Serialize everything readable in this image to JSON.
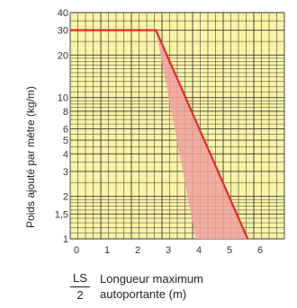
{
  "chart_data": {
    "type": "line",
    "ylabel": "Poids ajouté par mètre (kg/m)",
    "xlabel_fraction": {
      "numerator": "LS",
      "denominator": "2"
    },
    "xlabel_lines": [
      "Longueur maximum",
      "autoportante (m)"
    ],
    "xlim": [
      0,
      7
    ],
    "ylim": [
      1,
      40
    ],
    "yscale": "log",
    "x_ticks": [
      {
        "value": 0,
        "label": "0"
      },
      {
        "value": 1,
        "label": "1"
      },
      {
        "value": 2,
        "label": "2"
      },
      {
        "value": 3,
        "label": "3"
      },
      {
        "value": 4,
        "label": "4"
      },
      {
        "value": 5,
        "label": "5"
      },
      {
        "value": 6,
        "label": "6"
      }
    ],
    "y_ticks": [
      {
        "value": 1,
        "label": "1"
      },
      {
        "value": 1.5,
        "label": "1,5"
      },
      {
        "value": 2,
        "label": "2"
      },
      {
        "value": 3,
        "label": "3"
      },
      {
        "value": 4,
        "label": "4"
      },
      {
        "value": 5,
        "label": "5"
      },
      {
        "value": 6,
        "label": "6"
      },
      {
        "value": 8,
        "label": "8"
      },
      {
        "value": 10,
        "label": "10"
      },
      {
        "value": 20,
        "label": "20"
      },
      {
        "value": 30,
        "label": "30"
      },
      {
        "value": 40,
        "label": "40"
      }
    ],
    "grid": true,
    "series": [
      {
        "kind": "line",
        "points": [
          [
            0,
            30
          ],
          [
            2.8,
            30
          ],
          [
            5.8,
            1
          ]
        ]
      },
      {
        "kind": "band",
        "points": [
          [
            2.8,
            30
          ],
          [
            4.1,
            1
          ],
          [
            5.8,
            1
          ]
        ]
      }
    ],
    "colors": {
      "background": "#fbf3a6",
      "grid": "#3a3a3a",
      "line": "#e32b2b",
      "band": "#f0a0a0"
    }
  }
}
